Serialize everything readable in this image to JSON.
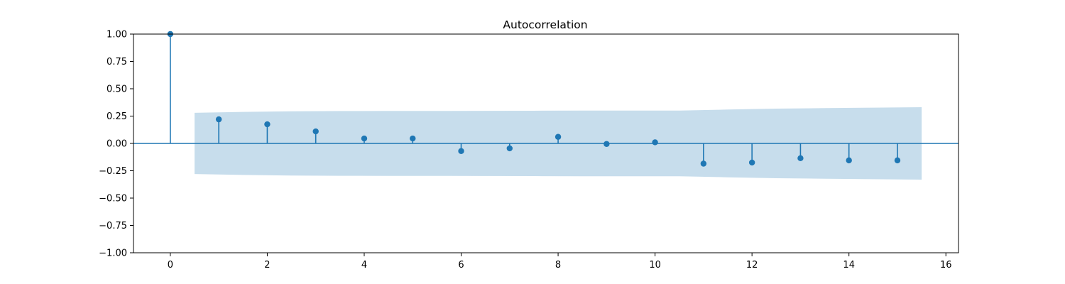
{
  "chart_data": {
    "type": "stem",
    "title": "Autocorrelation",
    "xlabel": "",
    "ylabel": "",
    "xlim": [
      -0.76,
      16.26
    ],
    "ylim": [
      -1.0,
      1.0
    ],
    "x_ticks": [
      0,
      2,
      4,
      6,
      8,
      10,
      12,
      14,
      16
    ],
    "y_ticks": [
      -1.0,
      -0.75,
      -0.5,
      -0.25,
      0.0,
      0.25,
      0.5,
      0.75,
      1.0
    ],
    "x_tick_labels": [
      "0",
      "2",
      "4",
      "6",
      "8",
      "10",
      "12",
      "14",
      "16"
    ],
    "y_tick_labels": [
      "−1.00",
      "−0.75",
      "−0.50",
      "−0.25",
      "0.00",
      "0.25",
      "0.50",
      "0.75",
      "1.00"
    ],
    "grid": false,
    "series": [
      {
        "lags": [
          0,
          1,
          2,
          3,
          4,
          5,
          6,
          7,
          8,
          9,
          10,
          11,
          12,
          13,
          14,
          15
        ],
        "values": [
          1.0,
          0.22,
          0.175,
          0.11,
          0.045,
          0.045,
          -0.07,
          -0.045,
          0.06,
          -0.005,
          0.01,
          -0.185,
          -0.175,
          -0.135,
          -0.155,
          -0.155
        ]
      }
    ],
    "confidence_band": {
      "x": [
        0.5,
        1.5,
        2.5,
        3.5,
        4.5,
        5.5,
        6.5,
        7.5,
        8.5,
        9.5,
        10.5,
        11.5,
        12.5,
        13.5,
        14.5,
        15.5
      ],
      "upper": [
        0.28,
        0.288,
        0.294,
        0.296,
        0.297,
        0.297,
        0.298,
        0.299,
        0.3,
        0.3,
        0.3,
        0.31,
        0.318,
        0.323,
        0.327,
        0.331
      ],
      "lower": [
        -0.28,
        -0.288,
        -0.294,
        -0.296,
        -0.297,
        -0.297,
        -0.298,
        -0.299,
        -0.3,
        -0.3,
        -0.3,
        -0.31,
        -0.318,
        -0.323,
        -0.327,
        -0.331
      ]
    },
    "colors": {
      "stem": "#1f77b4",
      "band": "#1f77b4",
      "zero_line": "#1f77b4"
    }
  }
}
